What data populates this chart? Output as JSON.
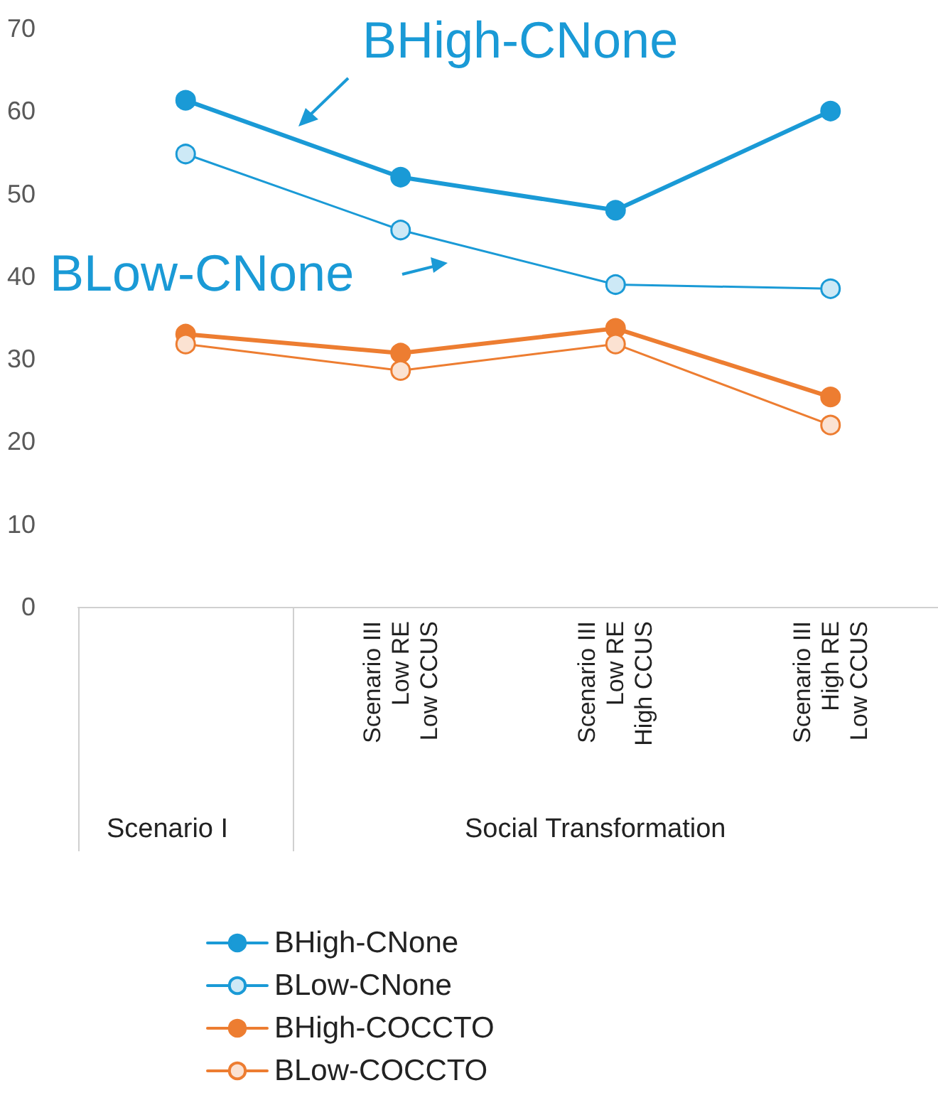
{
  "chart_data": {
    "type": "line",
    "categories": [
      null,
      "Scenario III\nLow RE\nLow CCUS",
      "Scenario III\nLow RE\nHigh CCUS",
      "Scenario III\nHigh RE\nLow CCUS"
    ],
    "series": [
      {
        "name": "BHigh-CNone",
        "color": "#1a9ad6",
        "values": [
          61.3,
          52,
          48,
          60
        ]
      },
      {
        "name": "BLow-CNone",
        "color": "#1a9ad6",
        "values": [
          54.8,
          45.6,
          39,
          38.5
        ]
      },
      {
        "name": "BHigh-COCCTO",
        "color": "#ed7d31",
        "values": [
          33,
          30.7,
          33.7,
          25.4
        ]
      },
      {
        "name": "BLow-COCCTO",
        "color": "#ed7d31",
        "values": [
          31.8,
          28.6,
          31.8,
          22
        ]
      }
    ],
    "annotations": [
      "Scenario I",
      "Social Transformation",
      "BHigh-CNone",
      "BLow-CNone"
    ],
    "ylim": [
      0,
      70
    ],
    "yticks": [
      0,
      10,
      20,
      30,
      40,
      50,
      60,
      70
    ],
    "grid": false,
    "legend": "bottom",
    "marker": "circle",
    "line_style": "solid"
  }
}
